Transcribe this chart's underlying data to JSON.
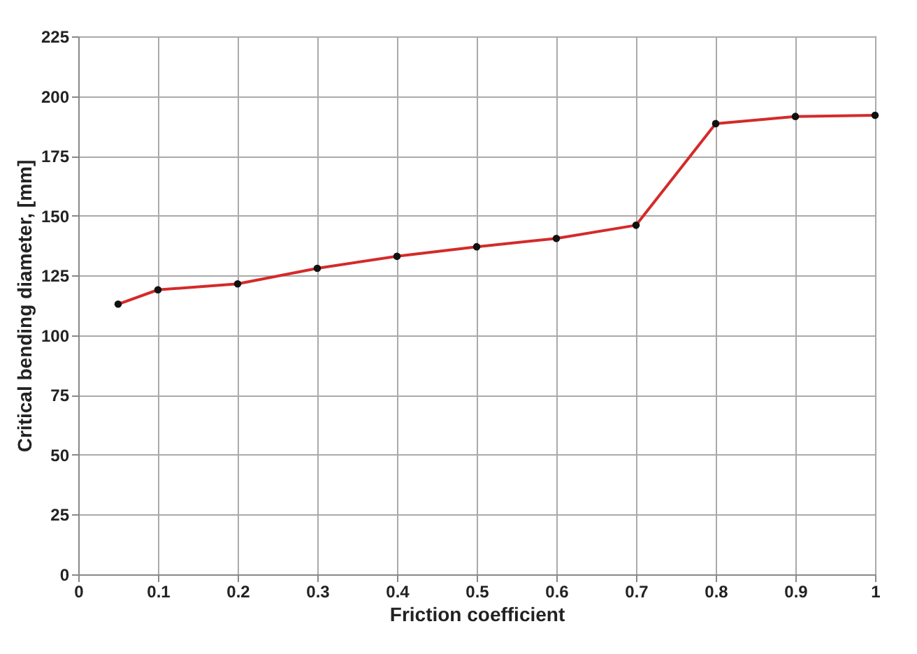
{
  "chart_data": {
    "type": "line",
    "xlabel": "Friction coefficient",
    "ylabel": "Critical bending diameter, [mm]",
    "x": [
      0.05,
      0.1,
      0.2,
      0.3,
      0.4,
      0.5,
      0.6,
      0.7,
      0.8,
      0.9,
      1.0
    ],
    "series": [
      {
        "color": "#d42a2a",
        "values": [
          113,
          119,
          121.5,
          128,
          133,
          137,
          140.5,
          146,
          188.5,
          191.5,
          192
        ]
      }
    ],
    "xlim": [
      0,
      1
    ],
    "xticks": [
      0,
      0.1,
      0.2,
      0.3,
      0.4,
      0.5,
      0.6,
      0.7,
      0.8,
      0.9,
      1
    ],
    "ylim": [
      0,
      225
    ],
    "yticks": [
      0,
      25,
      50,
      75,
      100,
      125,
      150,
      175,
      200,
      225
    ],
    "grid": true,
    "marker": "circle",
    "line_style": "solid"
  }
}
